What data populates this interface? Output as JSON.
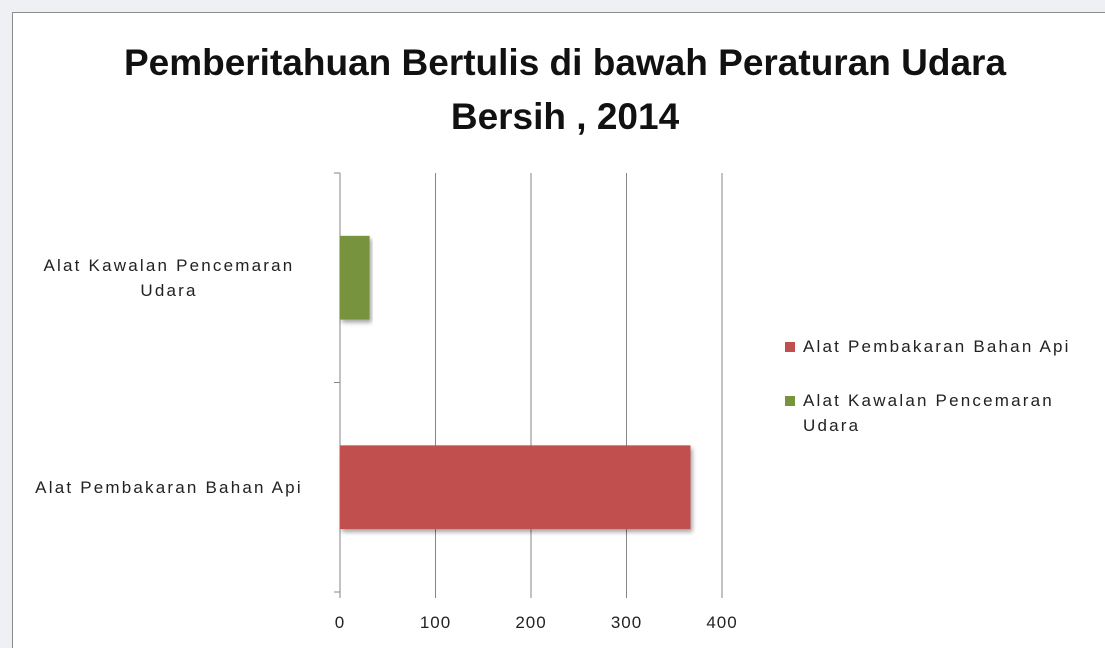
{
  "chart_data": {
    "type": "bar",
    "orientation": "horizontal",
    "title": "Pemberitahuan Bertulis di bawah Peraturan Udara Bersih , 2014",
    "categories": [
      "Alat Pembakaran Bahan Api",
      "Alat Kawalan Pencemaran Udara"
    ],
    "values": [
      367,
      31
    ],
    "colors": [
      "#c0504d",
      "#77933c"
    ],
    "xlim": [
      0,
      400
    ],
    "xticks": [
      0,
      100,
      200,
      300,
      400
    ],
    "grid": true,
    "legend": "right"
  }
}
